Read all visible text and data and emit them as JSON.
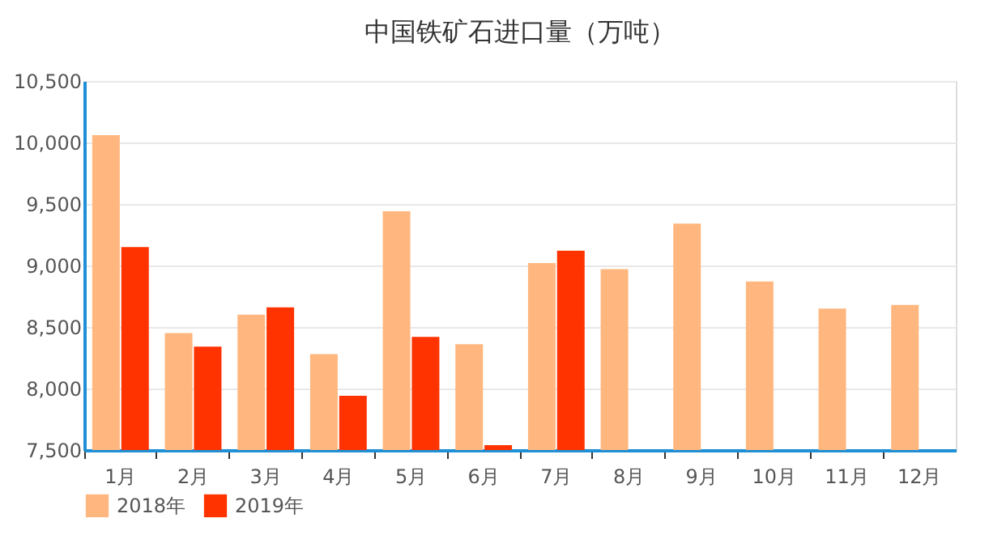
{
  "chart_data": {
    "type": "bar",
    "title": "中国铁矿石进口量（万吨）",
    "categories": [
      "1月",
      "2月",
      "3月",
      "4月",
      "5月",
      "6月",
      "7月",
      "8月",
      "9月",
      "10月",
      "11月",
      "12月"
    ],
    "series": [
      {
        "name": "2018年",
        "color": "#ffb77f",
        "values": [
          10060,
          8450,
          8600,
          8280,
          9440,
          8360,
          9020,
          8970,
          9340,
          8870,
          8650,
          8680
        ]
      },
      {
        "name": "2019年",
        "color": "#ff3300",
        "values": [
          9150,
          8340,
          8660,
          7940,
          8420,
          7540,
          9120,
          null,
          null,
          null,
          null,
          null
        ]
      }
    ],
    "ylim": [
      7500,
      10500
    ],
    "yticks": [
      {
        "value": 7500,
        "label": "7,500"
      },
      {
        "value": 8000,
        "label": "8,000"
      },
      {
        "value": 8500,
        "label": "8,500"
      },
      {
        "value": 9000,
        "label": "9,000"
      },
      {
        "value": 9500,
        "label": "9,500"
      },
      {
        "value": 10000,
        "label": "10,000"
      },
      {
        "value": 10500,
        "label": "10,500"
      }
    ],
    "grid": "y",
    "legend": "bottom"
  }
}
